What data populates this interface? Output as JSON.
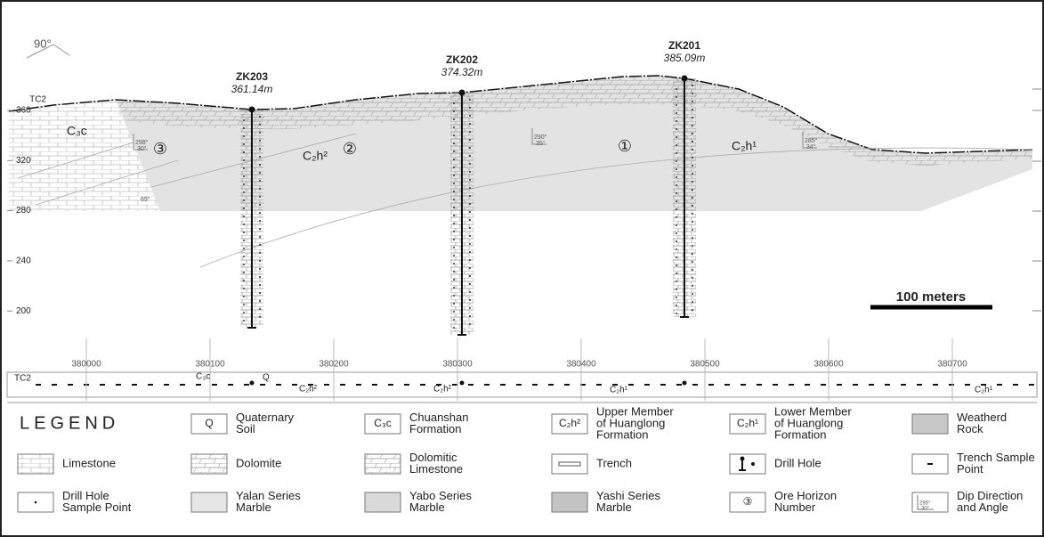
{
  "section": {
    "azimuth": "90°",
    "trench": "TC2",
    "elevations": [
      360,
      320,
      280,
      240,
      200
    ],
    "drill_holes": [
      {
        "id": "ZK203",
        "elevation": "361.14m"
      },
      {
        "id": "ZK202",
        "elevation": "374.32m"
      },
      {
        "id": "ZK201",
        "elevation": "385.09m"
      }
    ],
    "formations": [
      "C₃c",
      "C₂h²",
      "C₂h¹"
    ],
    "ore_horizons": [
      "③",
      "②",
      "①"
    ],
    "dips": [
      {
        "direction": "298°",
        "angle": "30°"
      },
      {
        "direction": "290°",
        "angle": "35°"
      },
      {
        "direction": "285°",
        "angle": "34°"
      }
    ],
    "contact_angle": "65°",
    "scale_bar": "100 meters"
  },
  "plan": {
    "trench": "TC2",
    "eastings": [
      380000,
      380100,
      380200,
      380300,
      380400,
      380500,
      380600,
      380700
    ],
    "labels": [
      "C₃c",
      "Q",
      "C₂h²",
      "C₂h²",
      "C₂h¹",
      "C₂h¹"
    ]
  },
  "legend": {
    "title": "LEGEND",
    "items": [
      {
        "symbol": "Q",
        "label": [
          "Quaternary",
          "Soil"
        ]
      },
      {
        "symbol": "C₃c",
        "label": [
          "Chuanshan",
          "Formation"
        ]
      },
      {
        "symbol": "C₂h²",
        "label": [
          "Upper Member",
          "of Huanglong",
          "Formation"
        ]
      },
      {
        "symbol": "C₂h¹",
        "label": [
          "Lower Member",
          "of Huanglong",
          "Formation"
        ]
      },
      {
        "label": [
          "Weatherd",
          "Rock"
        ]
      },
      {
        "label": [
          "Limestone"
        ]
      },
      {
        "label": [
          "Dolomite"
        ]
      },
      {
        "label": [
          "Dolomitic",
          "Limestone"
        ]
      },
      {
        "label": [
          "Trench"
        ]
      },
      {
        "label": [
          "Drill Hole"
        ]
      },
      {
        "label": [
          "Trench Sample",
          "Point"
        ]
      },
      {
        "label": [
          "Drill Hole",
          "Sample Point"
        ]
      },
      {
        "label": [
          "Yalan Series",
          "Marble"
        ]
      },
      {
        "label": [
          "Yabo Series",
          "Marble"
        ]
      },
      {
        "label": [
          "Yashi Series",
          "Marble"
        ]
      },
      {
        "symbol": "③",
        "label": [
          "Ore Horizon",
          "Number"
        ]
      },
      {
        "symbol": [
          "295°",
          "30°"
        ],
        "label": [
          "Dip Direction",
          "and Angle"
        ]
      }
    ]
  }
}
